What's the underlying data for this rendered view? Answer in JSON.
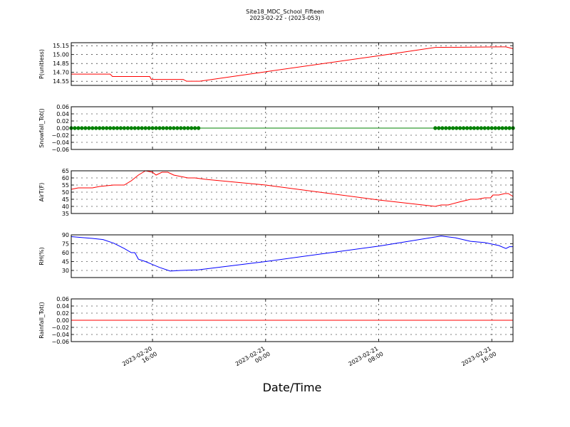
{
  "figure": {
    "title": "Site18_MDC_School_Fifteen",
    "subtitle": "2023-02-22 - (2023-053)",
    "xlabel": "Date/Time",
    "xlim": [
      "2023-02-20 10:15",
      "2023-02-21 17:30"
    ],
    "xticks": [
      "2023-02-20 16:00",
      "2023-02-21 00:00",
      "2023-02-21 08:00",
      "2023-02-21 16:00"
    ]
  },
  "chart_data": [
    {
      "type": "line",
      "ylabel": "P(unitless)",
      "color": "#ff0000",
      "grid": true,
      "ylim": [
        14.48,
        15.2
      ],
      "yticks": [
        14.55,
        {
          "value": 14.7,
          "label": "14.70"
        },
        14.85,
        {
          "value": 15,
          "label": "15.00"
        },
        15.15
      ],
      "x": [
        "2023-02-20 10:15",
        "2023-02-20 13:00",
        "2023-02-20 13:10",
        "2023-02-20 15:48",
        "2023-02-20 15:55",
        "2023-02-20 18:10",
        "2023-02-20 18:25",
        "2023-02-20 19:20",
        "2023-02-21 00:00",
        "2023-02-21 08:00",
        "2023-02-21 12:00",
        "2023-02-21 16:30",
        "2023-02-21 17:00",
        "2023-02-21 17:30"
      ],
      "values": [
        14.67,
        14.67,
        14.63,
        14.63,
        14.58,
        14.58,
        14.55,
        14.55,
        14.71,
        14.98,
        15.12,
        15.13,
        15.13,
        15.1
      ]
    },
    {
      "type": "line",
      "ylabel": "Snowfall_Tot()",
      "color": "#008000",
      "marker": "o",
      "grid": true,
      "ylim": [
        -0.06,
        0.06
      ],
      "yticks": [
        {
          "value": -0.06,
          "label": "−0.06"
        },
        {
          "value": -0.04,
          "label": "−0.04"
        },
        {
          "value": -0.02,
          "label": "−0.02"
        },
        {
          "value": 0,
          "label": "0.00"
        },
        0.02,
        0.04,
        0.06
      ],
      "x": [
        "2023-02-20 10:15",
        "2023-02-20 10:30",
        "2023-02-20 10:45",
        "2023-02-20 11:00",
        "2023-02-20 11:15",
        "2023-02-20 11:30",
        "2023-02-20 11:45",
        "2023-02-20 12:00",
        "2023-02-20 12:15",
        "2023-02-20 12:30",
        "2023-02-20 12:45",
        "2023-02-20 13:00",
        "2023-02-20 13:15",
        "2023-02-20 13:30",
        "2023-02-20 13:45",
        "2023-02-20 14:00",
        "2023-02-20 14:15",
        "2023-02-20 14:30",
        "2023-02-20 14:45",
        "2023-02-20 15:00",
        "2023-02-20 15:15",
        "2023-02-20 15:30",
        "2023-02-20 15:45",
        "2023-02-20 16:00",
        "2023-02-20 16:15",
        "2023-02-20 16:30",
        "2023-02-20 16:45",
        "2023-02-20 17:00",
        "2023-02-20 17:15",
        "2023-02-20 17:30",
        "2023-02-20 17:45",
        "2023-02-20 18:00",
        "2023-02-20 18:15",
        "2023-02-20 18:30",
        "2023-02-20 18:45",
        "2023-02-20 19:00",
        "2023-02-20 19:15",
        "2023-02-21 12:00",
        "2023-02-21 12:15",
        "2023-02-21 12:30",
        "2023-02-21 12:45",
        "2023-02-21 13:00",
        "2023-02-21 13:15",
        "2023-02-21 13:30",
        "2023-02-21 13:45",
        "2023-02-21 14:00",
        "2023-02-21 14:15",
        "2023-02-21 14:30",
        "2023-02-21 14:45",
        "2023-02-21 15:00",
        "2023-02-21 15:15",
        "2023-02-21 15:30",
        "2023-02-21 15:45",
        "2023-02-21 16:00",
        "2023-02-21 16:15",
        "2023-02-21 16:30",
        "2023-02-21 16:45",
        "2023-02-21 17:00",
        "2023-02-21 17:15",
        "2023-02-21 17:30"
      ],
      "values": [
        0,
        0,
        0,
        0,
        0,
        0,
        0,
        0,
        0,
        0,
        0,
        0,
        0,
        0,
        0,
        0,
        0,
        0,
        0,
        0,
        0,
        0,
        0,
        0,
        0,
        0,
        0,
        0,
        0,
        0,
        0,
        0,
        0,
        0,
        0,
        0,
        0,
        0,
        0,
        0,
        0,
        0,
        0,
        0,
        0,
        0,
        0,
        0,
        0,
        0,
        0,
        0,
        0,
        0,
        0,
        0,
        0,
        0,
        0,
        0
      ]
    },
    {
      "type": "line",
      "ylabel": "AirT(F)",
      "color": "#ff0000",
      "grid": true,
      "ylim": [
        35,
        65
      ],
      "yticks": [
        35,
        40,
        45,
        50,
        55,
        60,
        65
      ],
      "x": [
        "2023-02-20 10:15",
        "2023-02-20 10:45",
        "2023-02-20 11:45",
        "2023-02-20 12:15",
        "2023-02-20 13:15",
        "2023-02-20 14:00",
        "2023-02-20 14:30",
        "2023-02-20 15:00",
        "2023-02-20 15:30",
        "2023-02-20 16:00",
        "2023-02-20 16:15",
        "2023-02-20 16:40",
        "2023-02-20 17:05",
        "2023-02-20 17:30",
        "2023-02-20 18:00",
        "2023-02-20 18:30",
        "2023-02-20 19:00",
        "2023-02-20 19:45",
        "2023-02-21 00:00",
        "2023-02-21 08:00",
        "2023-02-21 12:00",
        "2023-02-21 12:25",
        "2023-02-21 12:55",
        "2023-02-21 13:40",
        "2023-02-21 14:30",
        "2023-02-21 15:00",
        "2023-02-21 15:30",
        "2023-02-21 15:55",
        "2023-02-21 16:05",
        "2023-02-21 16:30",
        "2023-02-21 16:55",
        "2023-02-21 17:10",
        "2023-02-21 17:30"
      ],
      "values": [
        52,
        53,
        53,
        54,
        55,
        55,
        58,
        62,
        65,
        64,
        62,
        64,
        64,
        62,
        61,
        60,
        60,
        59,
        55,
        44.5,
        40,
        41,
        41,
        43,
        45,
        45,
        46,
        46,
        48,
        48,
        49,
        49,
        47
      ]
    },
    {
      "type": "line",
      "ylabel": "RH(%)",
      "color": "#0000ff",
      "grid": true,
      "ylim": [
        18,
        90
      ],
      "yticks": [
        30,
        45,
        60,
        75,
        90
      ],
      "x": [
        "2023-02-20 10:15",
        "2023-02-20 11:45",
        "2023-02-20 12:30",
        "2023-02-20 13:15",
        "2023-02-20 14:00",
        "2023-02-20 14:30",
        "2023-02-20 14:45",
        "2023-02-20 15:00",
        "2023-02-20 15:30",
        "2023-02-20 16:00",
        "2023-02-20 16:30",
        "2023-02-20 17:15",
        "2023-02-20 18:00",
        "2023-02-20 19:15",
        "2023-02-21 00:00",
        "2023-02-21 08:00",
        "2023-02-21 12:25",
        "2023-02-21 13:25",
        "2023-02-21 14:30",
        "2023-02-21 15:30",
        "2023-02-21 16:30",
        "2023-02-21 17:00",
        "2023-02-21 17:15",
        "2023-02-21 17:30"
      ],
      "values": [
        87,
        84,
        82,
        76,
        67,
        60,
        60,
        49,
        45,
        40,
        35,
        29,
        30,
        31,
        45,
        71,
        88,
        85,
        79,
        77,
        72,
        67,
        70,
        70
      ]
    },
    {
      "type": "line",
      "ylabel": "Rainfall_Tot()",
      "color": "#ff0000",
      "grid": true,
      "ylim": [
        -0.06,
        0.06
      ],
      "yticks": [
        {
          "value": -0.06,
          "label": "−0.06"
        },
        {
          "value": -0.04,
          "label": "−0.04"
        },
        {
          "value": -0.02,
          "label": "−0.02"
        },
        {
          "value": 0,
          "label": "0.00"
        },
        0.02,
        0.04,
        0.06
      ],
      "x": [
        "2023-02-20 10:15",
        "2023-02-21 17:30"
      ],
      "values": [
        0,
        0
      ]
    }
  ]
}
